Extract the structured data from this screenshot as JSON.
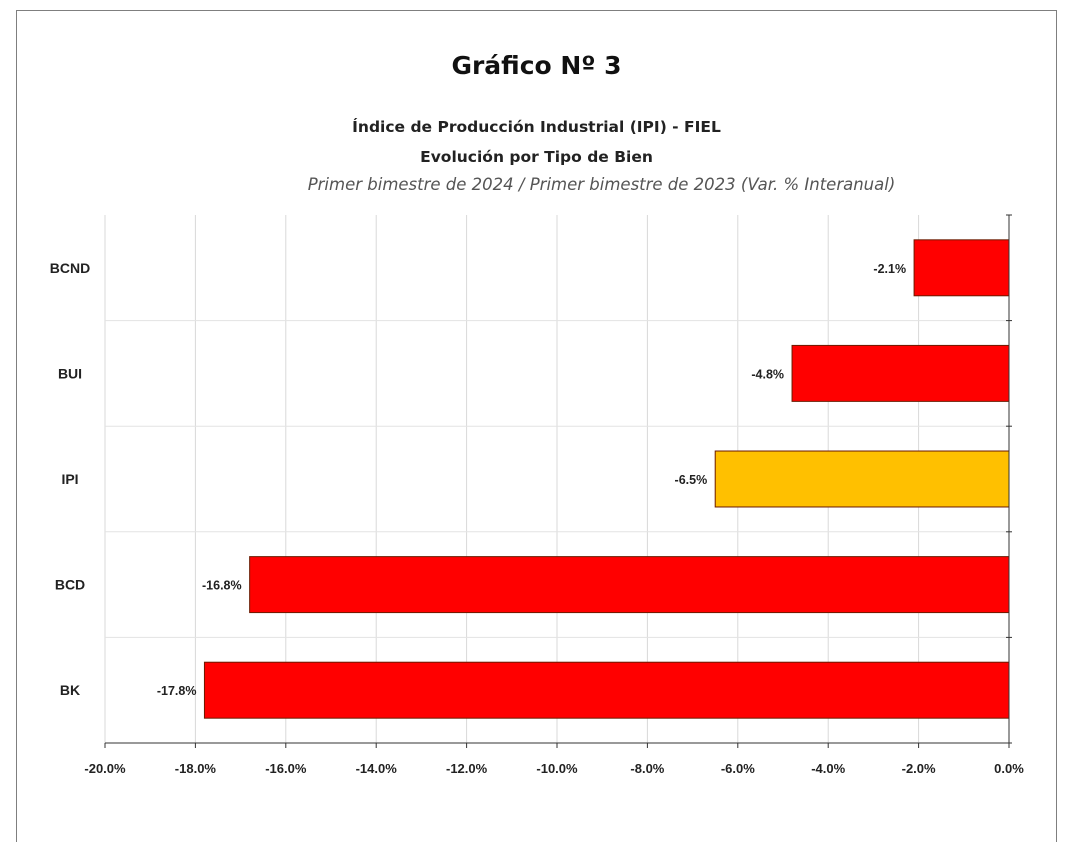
{
  "chart_data": {
    "type": "bar",
    "orientation": "horizontal",
    "title": "Gráfico Nº 3",
    "subtitle_lines": [
      "Índice de Producción Industrial (IPI) - FIEL",
      "Evolución por Tipo de Bien"
    ],
    "subtitle_italic": "Primer bimestre de 2024 / Primer bimestre de 2023 (Var. % Interanual)",
    "categories": [
      "BCND",
      "BUI",
      "IPI",
      "BCD",
      "BK"
    ],
    "values": [
      -2.1,
      -4.8,
      -6.5,
      -16.8,
      -17.8
    ],
    "data_labels": [
      "-2.1%",
      "-4.8%",
      "-6.5%",
      "-16.8%",
      "-17.8%"
    ],
    "bar_colors": [
      "#ff0000",
      "#ff0000",
      "#ffc000",
      "#ff0000",
      "#ff0000"
    ],
    "xlim": [
      -20,
      0
    ],
    "x_ticks": [
      -20,
      -18,
      -16,
      -14,
      -12,
      -10,
      -8,
      -6,
      -4,
      -2,
      0
    ],
    "x_tick_labels": [
      "-20.0%",
      "-18.0%",
      "-16.0%",
      "-14.0%",
      "-12.0%",
      "-10.0%",
      "-8.0%",
      "-6.0%",
      "-4.0%",
      "-2.0%",
      "0.0%"
    ],
    "xlabel": "",
    "ylabel": "",
    "grid": true,
    "legend": "none"
  }
}
